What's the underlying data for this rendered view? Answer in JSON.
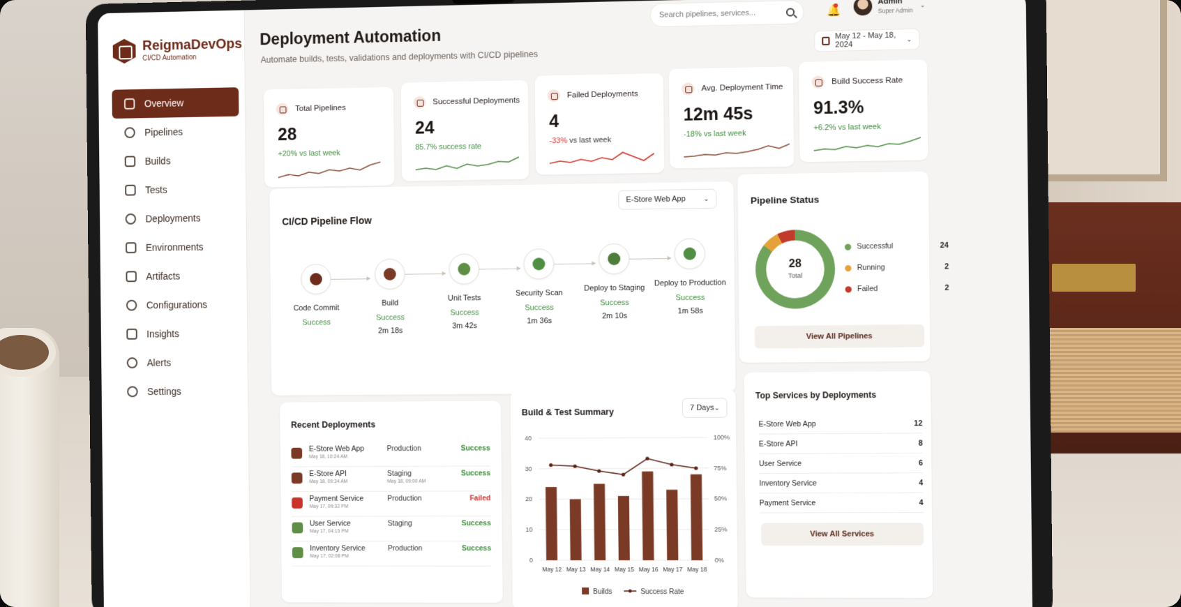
{
  "brand": {
    "name": "ReigmaDevOps",
    "subtitle": "CI/CD Automation"
  },
  "sidebar": {
    "items": [
      {
        "label": "Overview",
        "icon": "dashboard-icon",
        "active": true
      },
      {
        "label": "Pipelines",
        "icon": "pipelines-icon"
      },
      {
        "label": "Builds",
        "icon": "builds-icon"
      },
      {
        "label": "Tests",
        "icon": "tests-icon"
      },
      {
        "label": "Deployments",
        "icon": "deployments-icon"
      },
      {
        "label": "Environments",
        "icon": "environments-icon"
      },
      {
        "label": "Artifacts",
        "icon": "artifacts-icon"
      },
      {
        "label": "Configurations",
        "icon": "gear-icon"
      },
      {
        "label": "Insights",
        "icon": "insights-icon"
      },
      {
        "label": "Alerts",
        "icon": "bell-icon"
      },
      {
        "label": "Settings",
        "icon": "settings-icon"
      }
    ]
  },
  "header": {
    "title": "Deployment Automation",
    "subtitle": "Automate builds, tests, validations and deployments with CI/CD pipelines",
    "search_placeholder": "Search pipelines, services...",
    "user_name": "Admin",
    "user_role": "Super Admin",
    "date_range": "May 12 - May 18, 2024"
  },
  "stats": [
    {
      "label": "Total Pipelines",
      "value": "28",
      "delta": "+20% vs last week",
      "trend": "up"
    },
    {
      "label": "Successful Deployments",
      "value": "24",
      "delta": "85.7% success rate",
      "trend": "up"
    },
    {
      "label": "Failed Deployments",
      "value": "4",
      "delta_strong": "-33%",
      "delta": "vs last week",
      "trend": "down"
    },
    {
      "label": "Avg. Deployment Time",
      "value": "12m 45s",
      "delta": "-18% vs last week",
      "trend": "up"
    },
    {
      "label": "Build Success Rate",
      "value": "91.3%",
      "delta": "+6.2% vs last week",
      "trend": "up"
    }
  ],
  "flow": {
    "title": "CI/CD Pipeline Flow",
    "app_select": "E-Store Web App",
    "steps": [
      {
        "name": "Code Commit",
        "status": "Success",
        "duration": ""
      },
      {
        "name": "Build",
        "status": "Success",
        "duration": "2m 18s"
      },
      {
        "name": "Unit Tests",
        "status": "Success",
        "duration": "3m 42s"
      },
      {
        "name": "Security Scan",
        "status": "Success",
        "duration": "1m 36s"
      },
      {
        "name": "Deploy to Staging",
        "status": "Success",
        "duration": "2m 10s"
      },
      {
        "name": "Deploy to Production",
        "status": "Success",
        "duration": "1m 58s"
      }
    ]
  },
  "pipeline_status": {
    "title": "Pipeline Status",
    "total": "28",
    "total_label": "Total",
    "legend": [
      {
        "label": "Successful",
        "value": "24",
        "color": "#6fa25a"
      },
      {
        "label": "Running",
        "value": "2",
        "color": "#e6a23a"
      },
      {
        "label": "Failed",
        "value": "2",
        "color": "#c23a2a"
      }
    ],
    "button": "View All Pipelines"
  },
  "recent": {
    "title": "Recent Deployments",
    "rows": [
      {
        "name": "E-Store Web App",
        "time": "May 18, 10:24 AM",
        "env": "Production",
        "env_time": "",
        "status": "Success"
      },
      {
        "name": "E-Store API",
        "time": "May 18, 09:34 AM",
        "env": "Staging",
        "env_time": "May 18, 09:00 AM",
        "status": "Success"
      },
      {
        "name": "Payment Service",
        "time": "May 17, 09:32 PM",
        "env": "Production",
        "env_time": "",
        "status": "Failed"
      },
      {
        "name": "User Service",
        "time": "May 17, 04:15 PM",
        "env": "Staging",
        "env_time": "",
        "status": "Success"
      },
      {
        "name": "Inventory Service",
        "time": "May 17, 02:08 PM",
        "env": "Production",
        "env_time": "",
        "status": "Success"
      }
    ]
  },
  "summary": {
    "title": "Build & Test Summary",
    "range_select": "7 Days"
  },
  "chart_data": {
    "type": "bar",
    "categories": [
      "May 12",
      "May 13",
      "May 14",
      "May 15",
      "May 16",
      "May 17",
      "May 18"
    ],
    "series": [
      {
        "name": "Builds",
        "type": "bar",
        "values": [
          24,
          20,
          25,
          21,
          29,
          23,
          28
        ]
      },
      {
        "name": "Success Rate",
        "type": "line",
        "axis": "right",
        "values": [
          78,
          77,
          73,
          70,
          83,
          78,
          75
        ]
      }
    ],
    "ylim": [
      0,
      40
    ],
    "yticks": [
      0,
      10,
      20,
      30,
      40
    ],
    "y2lim": [
      0,
      100
    ],
    "y2ticks": [
      "0%",
      "25%",
      "50%",
      "75%",
      "100%"
    ],
    "legend": "bottom",
    "grid": true
  },
  "top_services": {
    "title": "Top Services by Deployments",
    "rows": [
      {
        "name": "E-Store Web App",
        "value": "12"
      },
      {
        "name": "E-Store API",
        "value": "8"
      },
      {
        "name": "User Service",
        "value": "6"
      },
      {
        "name": "Inventory Service",
        "value": "4"
      },
      {
        "name": "Payment Service",
        "value": "4"
      }
    ],
    "button": "View All Services"
  },
  "colors": {
    "brand": "#6d2b19",
    "success": "#3d8c3b",
    "failed": "#d0352a"
  }
}
